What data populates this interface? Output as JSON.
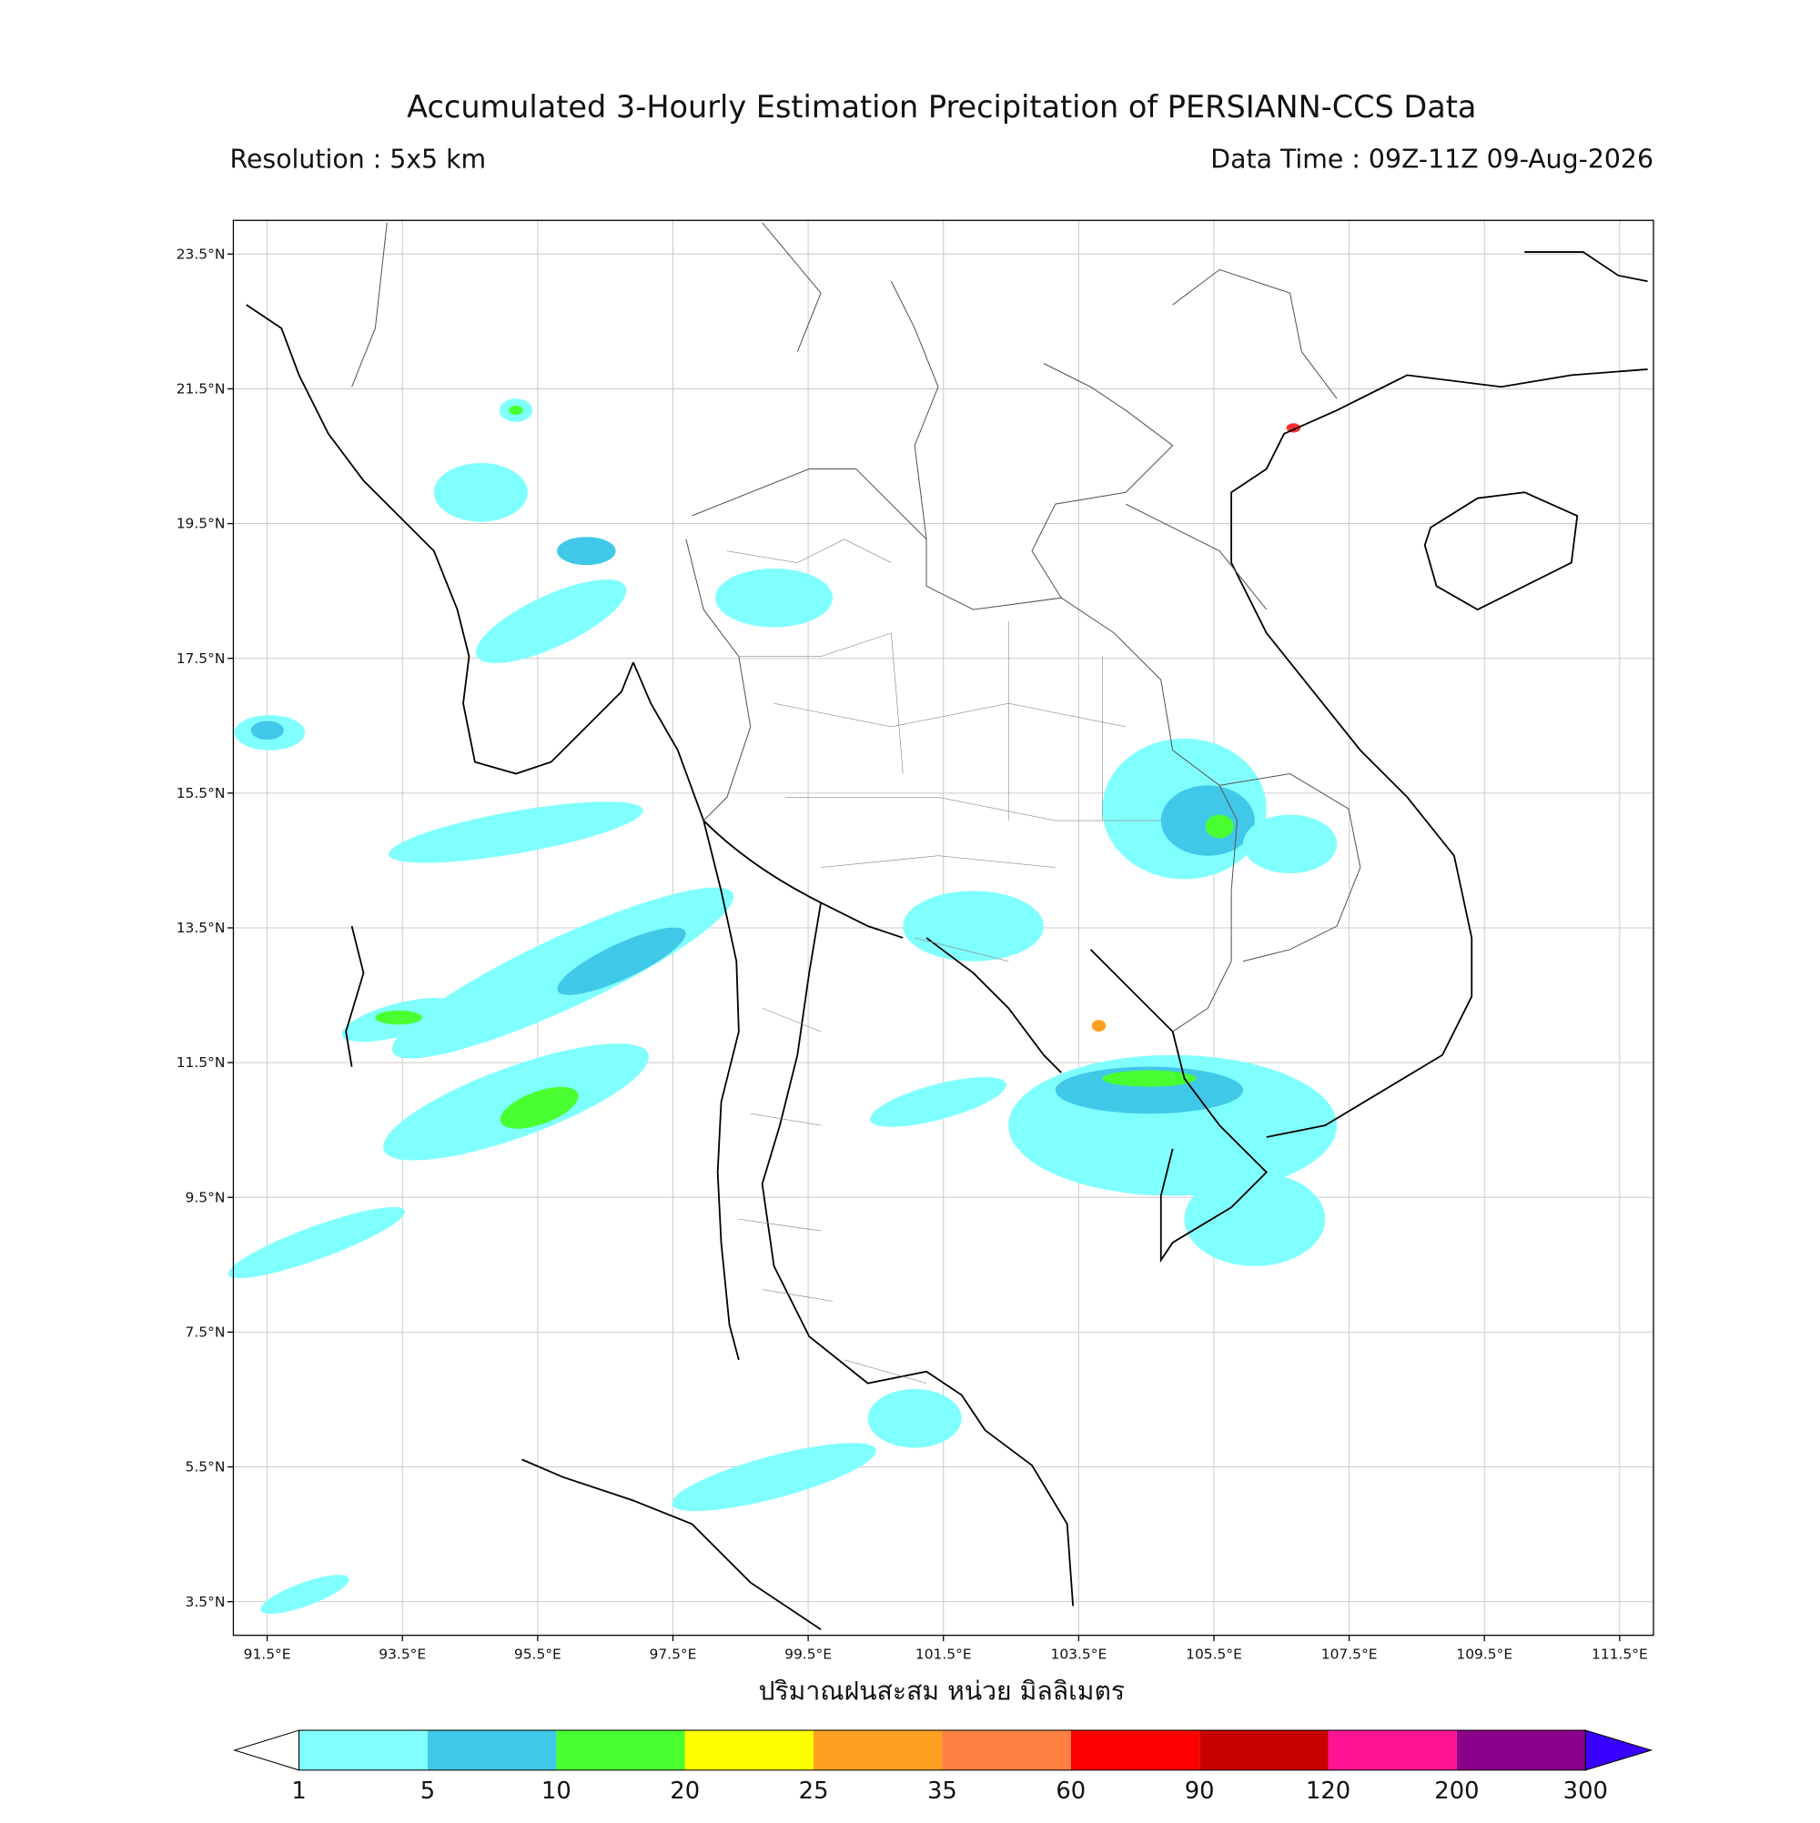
{
  "title": "Accumulated 3-Hourly Estimation Precipitation of PERSIANN-CCS Data",
  "resolution": "Resolution : 5x5 km",
  "data_time": "Data Time : 09Z-11Z 09-Aug-2026",
  "xlabel": "ปริมาณฝนสะสม หน่วย มิลลิเมตร",
  "map": {
    "xlim": [
      91,
      112
    ],
    "ylim": [
      3,
      24
    ],
    "xticks": [
      {
        "value": 91.5,
        "label": "91.5°E"
      },
      {
        "value": 93.5,
        "label": "93.5°E"
      },
      {
        "value": 95.5,
        "label": "95.5°E"
      },
      {
        "value": 97.5,
        "label": "97.5°E"
      },
      {
        "value": 99.5,
        "label": "99.5°E"
      },
      {
        "value": 101.5,
        "label": "101.5°E"
      },
      {
        "value": 103.5,
        "label": "103.5°E"
      },
      {
        "value": 105.5,
        "label": "105.5°E"
      },
      {
        "value": 107.5,
        "label": "107.5°E"
      },
      {
        "value": 109.5,
        "label": "109.5°E"
      },
      {
        "value": 111.5,
        "label": "111.5°E"
      }
    ],
    "yticks": [
      {
        "value": 23.5,
        "label": "23.5°N"
      },
      {
        "value": 21.5,
        "label": "21.5°N"
      },
      {
        "value": 19.5,
        "label": "19.5°N"
      },
      {
        "value": 17.5,
        "label": "17.5°N"
      },
      {
        "value": 15.5,
        "label": "15.5°N"
      },
      {
        "value": 13.5,
        "label": "13.5°N"
      },
      {
        "value": 11.5,
        "label": "11.5°N"
      },
      {
        "value": 9.5,
        "label": "9.5°N"
      },
      {
        "value": 7.5,
        "label": "7.5°N"
      },
      {
        "value": 5.5,
        "label": "5.5°N"
      },
      {
        "value": 3.5,
        "label": "3.5°N"
      }
    ],
    "grid": true
  },
  "colorbar": {
    "levels": [
      1,
      5,
      10,
      20,
      25,
      35,
      60,
      90,
      120,
      200,
      300
    ],
    "colors": [
      "#80ffff",
      "#40c8e8",
      "#48ff30",
      "#ffff00",
      "#ffa020",
      "#ff8040",
      "#ff0000",
      "#c80000",
      "#ff1493",
      "#8b008b"
    ],
    "under_color": "#ffffff",
    "over_color": "#3a00ff"
  }
}
